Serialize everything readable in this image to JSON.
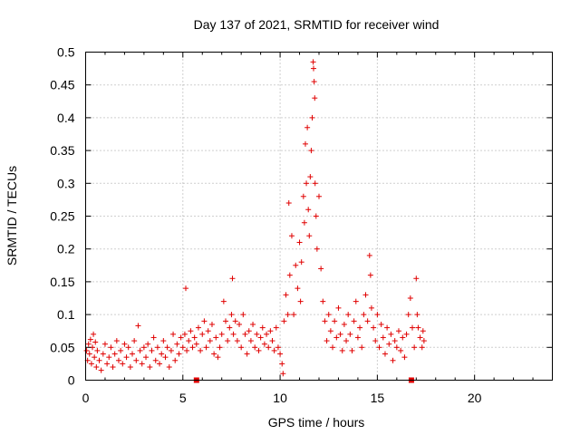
{
  "chart_data": {
    "type": "scatter",
    "title": "Day 137 of 2021, SRMTID for receiver wind",
    "xlabel": "GPS time / hours",
    "ylabel": "SRMTID / TECUs",
    "xlim": [
      0,
      24
    ],
    "ylim": [
      0,
      0.5
    ],
    "x_ticks": [
      "0",
      "5",
      "10",
      "15",
      "20"
    ],
    "y_ticks": [
      "0",
      "0.05",
      "0.1",
      "0.15",
      "0.2",
      "0.25",
      "0.3",
      "0.35",
      "0.4",
      "0.45",
      "0.5"
    ],
    "grid": true,
    "marker": "+",
    "color": "#e00000",
    "series": [
      {
        "points": [
          [
            0.05,
            0.045
          ],
          [
            0.1,
            0.03
          ],
          [
            0.15,
            0.055
          ],
          [
            0.2,
            0.04
          ],
          [
            0.25,
            0.062
          ],
          [
            0.3,
            0.025
          ],
          [
            0.35,
            0.05
          ],
          [
            0.4,
            0.07
          ],
          [
            0.45,
            0.035
          ],
          [
            0.5,
            0.058
          ],
          [
            0.55,
            0.02
          ],
          [
            0.6,
            0.045
          ],
          [
            0.7,
            0.03
          ],
          [
            0.8,
            0.015
          ],
          [
            0.9,
            0.04
          ],
          [
            1.0,
            0.055
          ],
          [
            1.1,
            0.025
          ],
          [
            1.2,
            0.035
          ],
          [
            1.3,
            0.05
          ],
          [
            1.4,
            0.02
          ],
          [
            1.5,
            0.04
          ],
          [
            1.6,
            0.06
          ],
          [
            1.7,
            0.03
          ],
          [
            1.8,
            0.045
          ],
          [
            1.9,
            0.025
          ],
          [
            2.0,
            0.055
          ],
          [
            2.1,
            0.035
          ],
          [
            2.2,
            0.05
          ],
          [
            2.3,
            0.02
          ],
          [
            2.4,
            0.04
          ],
          [
            2.5,
            0.06
          ],
          [
            2.6,
            0.03
          ],
          [
            2.7,
            0.083
          ],
          [
            2.8,
            0.045
          ],
          [
            2.9,
            0.025
          ],
          [
            3.0,
            0.05
          ],
          [
            3.1,
            0.035
          ],
          [
            3.2,
            0.055
          ],
          [
            3.3,
            0.02
          ],
          [
            3.4,
            0.045
          ],
          [
            3.5,
            0.065
          ],
          [
            3.6,
            0.03
          ],
          [
            3.7,
            0.05
          ],
          [
            3.8,
            0.025
          ],
          [
            3.9,
            0.04
          ],
          [
            4.0,
            0.06
          ],
          [
            4.1,
            0.035
          ],
          [
            4.2,
            0.05
          ],
          [
            4.3,
            0.02
          ],
          [
            4.4,
            0.045
          ],
          [
            4.5,
            0.07
          ],
          [
            4.6,
            0.03
          ],
          [
            4.7,
            0.055
          ],
          [
            4.8,
            0.04
          ],
          [
            4.9,
            0.065
          ],
          [
            5.0,
            0.05
          ],
          [
            5.1,
            0.07
          ],
          [
            5.15,
            0.14
          ],
          [
            5.2,
            0.045
          ],
          [
            5.3,
            0.06
          ],
          [
            5.4,
            0.075
          ],
          [
            5.5,
            0.05
          ],
          [
            5.6,
            0.065
          ],
          [
            5.7,
            0.055
          ],
          [
            5.8,
            0.08
          ],
          [
            5.9,
            0.045
          ],
          [
            6.0,
            0.07
          ],
          [
            6.1,
            0.09
          ],
          [
            6.2,
            0.05
          ],
          [
            6.3,
            0.075
          ],
          [
            6.4,
            0.06
          ],
          [
            6.5,
            0.085
          ],
          [
            6.6,
            0.04
          ],
          [
            6.7,
            0.065
          ],
          [
            6.8,
            0.035
          ],
          [
            6.9,
            0.05
          ],
          [
            7.0,
            0.07
          ],
          [
            7.1,
            0.12
          ],
          [
            7.2,
            0.09
          ],
          [
            7.3,
            0.06
          ],
          [
            7.4,
            0.08
          ],
          [
            7.5,
            0.1
          ],
          [
            7.55,
            0.155
          ],
          [
            7.6,
            0.07
          ],
          [
            7.7,
            0.09
          ],
          [
            7.8,
            0.06
          ],
          [
            7.9,
            0.085
          ],
          [
            8.0,
            0.05
          ],
          [
            8.1,
            0.1
          ],
          [
            8.2,
            0.07
          ],
          [
            8.3,
            0.04
          ],
          [
            8.4,
            0.075
          ],
          [
            8.5,
            0.06
          ],
          [
            8.6,
            0.085
          ],
          [
            8.7,
            0.05
          ],
          [
            8.8,
            0.07
          ],
          [
            8.9,
            0.045
          ],
          [
            9.0,
            0.065
          ],
          [
            9.1,
            0.08
          ],
          [
            9.2,
            0.055
          ],
          [
            9.3,
            0.07
          ],
          [
            9.4,
            0.05
          ],
          [
            9.5,
            0.075
          ],
          [
            9.6,
            0.06
          ],
          [
            9.7,
            0.045
          ],
          [
            9.8,
            0.08
          ],
          [
            9.9,
            0.05
          ],
          [
            10.0,
            0.04
          ],
          [
            10.1,
            0.025
          ],
          [
            10.15,
            0.01
          ],
          [
            10.2,
            0.09
          ],
          [
            10.3,
            0.13
          ],
          [
            10.4,
            0.1
          ],
          [
            10.45,
            0.27
          ],
          [
            10.5,
            0.16
          ],
          [
            10.6,
            0.22
          ],
          [
            10.7,
            0.1
          ],
          [
            10.8,
            0.175
          ],
          [
            10.9,
            0.14
          ],
          [
            11.0,
            0.21
          ],
          [
            11.05,
            0.12
          ],
          [
            11.1,
            0.18
          ],
          [
            11.2,
            0.28
          ],
          [
            11.25,
            0.24
          ],
          [
            11.3,
            0.36
          ],
          [
            11.35,
            0.3
          ],
          [
            11.4,
            0.385
          ],
          [
            11.45,
            0.26
          ],
          [
            11.5,
            0.22
          ],
          [
            11.55,
            0.31
          ],
          [
            11.6,
            0.35
          ],
          [
            11.65,
            0.4
          ],
          [
            11.7,
            0.485
          ],
          [
            11.72,
            0.475
          ],
          [
            11.75,
            0.455
          ],
          [
            11.78,
            0.43
          ],
          [
            11.8,
            0.3
          ],
          [
            11.85,
            0.25
          ],
          [
            11.9,
            0.2
          ],
          [
            12.0,
            0.28
          ],
          [
            12.1,
            0.17
          ],
          [
            12.2,
            0.12
          ],
          [
            12.3,
            0.09
          ],
          [
            12.4,
            0.06
          ],
          [
            12.5,
            0.1
          ],
          [
            12.6,
            0.075
          ],
          [
            12.7,
            0.05
          ],
          [
            12.8,
            0.09
          ],
          [
            12.9,
            0.065
          ],
          [
            13.0,
            0.11
          ],
          [
            13.1,
            0.07
          ],
          [
            13.2,
            0.045
          ],
          [
            13.3,
            0.085
          ],
          [
            13.4,
            0.06
          ],
          [
            13.5,
            0.1
          ],
          [
            13.6,
            0.07
          ],
          [
            13.7,
            0.045
          ],
          [
            13.8,
            0.09
          ],
          [
            13.9,
            0.12
          ],
          [
            14.0,
            0.065
          ],
          [
            14.1,
            0.08
          ],
          [
            14.2,
            0.05
          ],
          [
            14.3,
            0.1
          ],
          [
            14.4,
            0.13
          ],
          [
            14.5,
            0.09
          ],
          [
            14.6,
            0.19
          ],
          [
            14.65,
            0.16
          ],
          [
            14.7,
            0.11
          ],
          [
            14.8,
            0.08
          ],
          [
            14.9,
            0.06
          ],
          [
            15.0,
            0.1
          ],
          [
            15.1,
            0.05
          ],
          [
            15.2,
            0.085
          ],
          [
            15.3,
            0.065
          ],
          [
            15.4,
            0.04
          ],
          [
            15.5,
            0.08
          ],
          [
            15.6,
            0.055
          ],
          [
            15.7,
            0.07
          ],
          [
            15.8,
            0.03
          ],
          [
            15.9,
            0.06
          ],
          [
            16.0,
            0.05
          ],
          [
            16.1,
            0.075
          ],
          [
            16.2,
            0.045
          ],
          [
            16.3,
            0.065
          ],
          [
            16.4,
            0.035
          ],
          [
            16.5,
            0.07
          ],
          [
            16.6,
            0.1
          ],
          [
            16.7,
            0.125
          ],
          [
            16.8,
            0.08
          ],
          [
            16.9,
            0.05
          ],
          [
            17.0,
            0.155
          ],
          [
            17.05,
            0.1
          ],
          [
            17.1,
            0.08
          ],
          [
            17.2,
            0.065
          ],
          [
            17.3,
            0.05
          ],
          [
            17.35,
            0.075
          ],
          [
            17.4,
            0.06
          ]
        ]
      }
    ],
    "bottom_markers": [
      5.7,
      16.75
    ]
  }
}
